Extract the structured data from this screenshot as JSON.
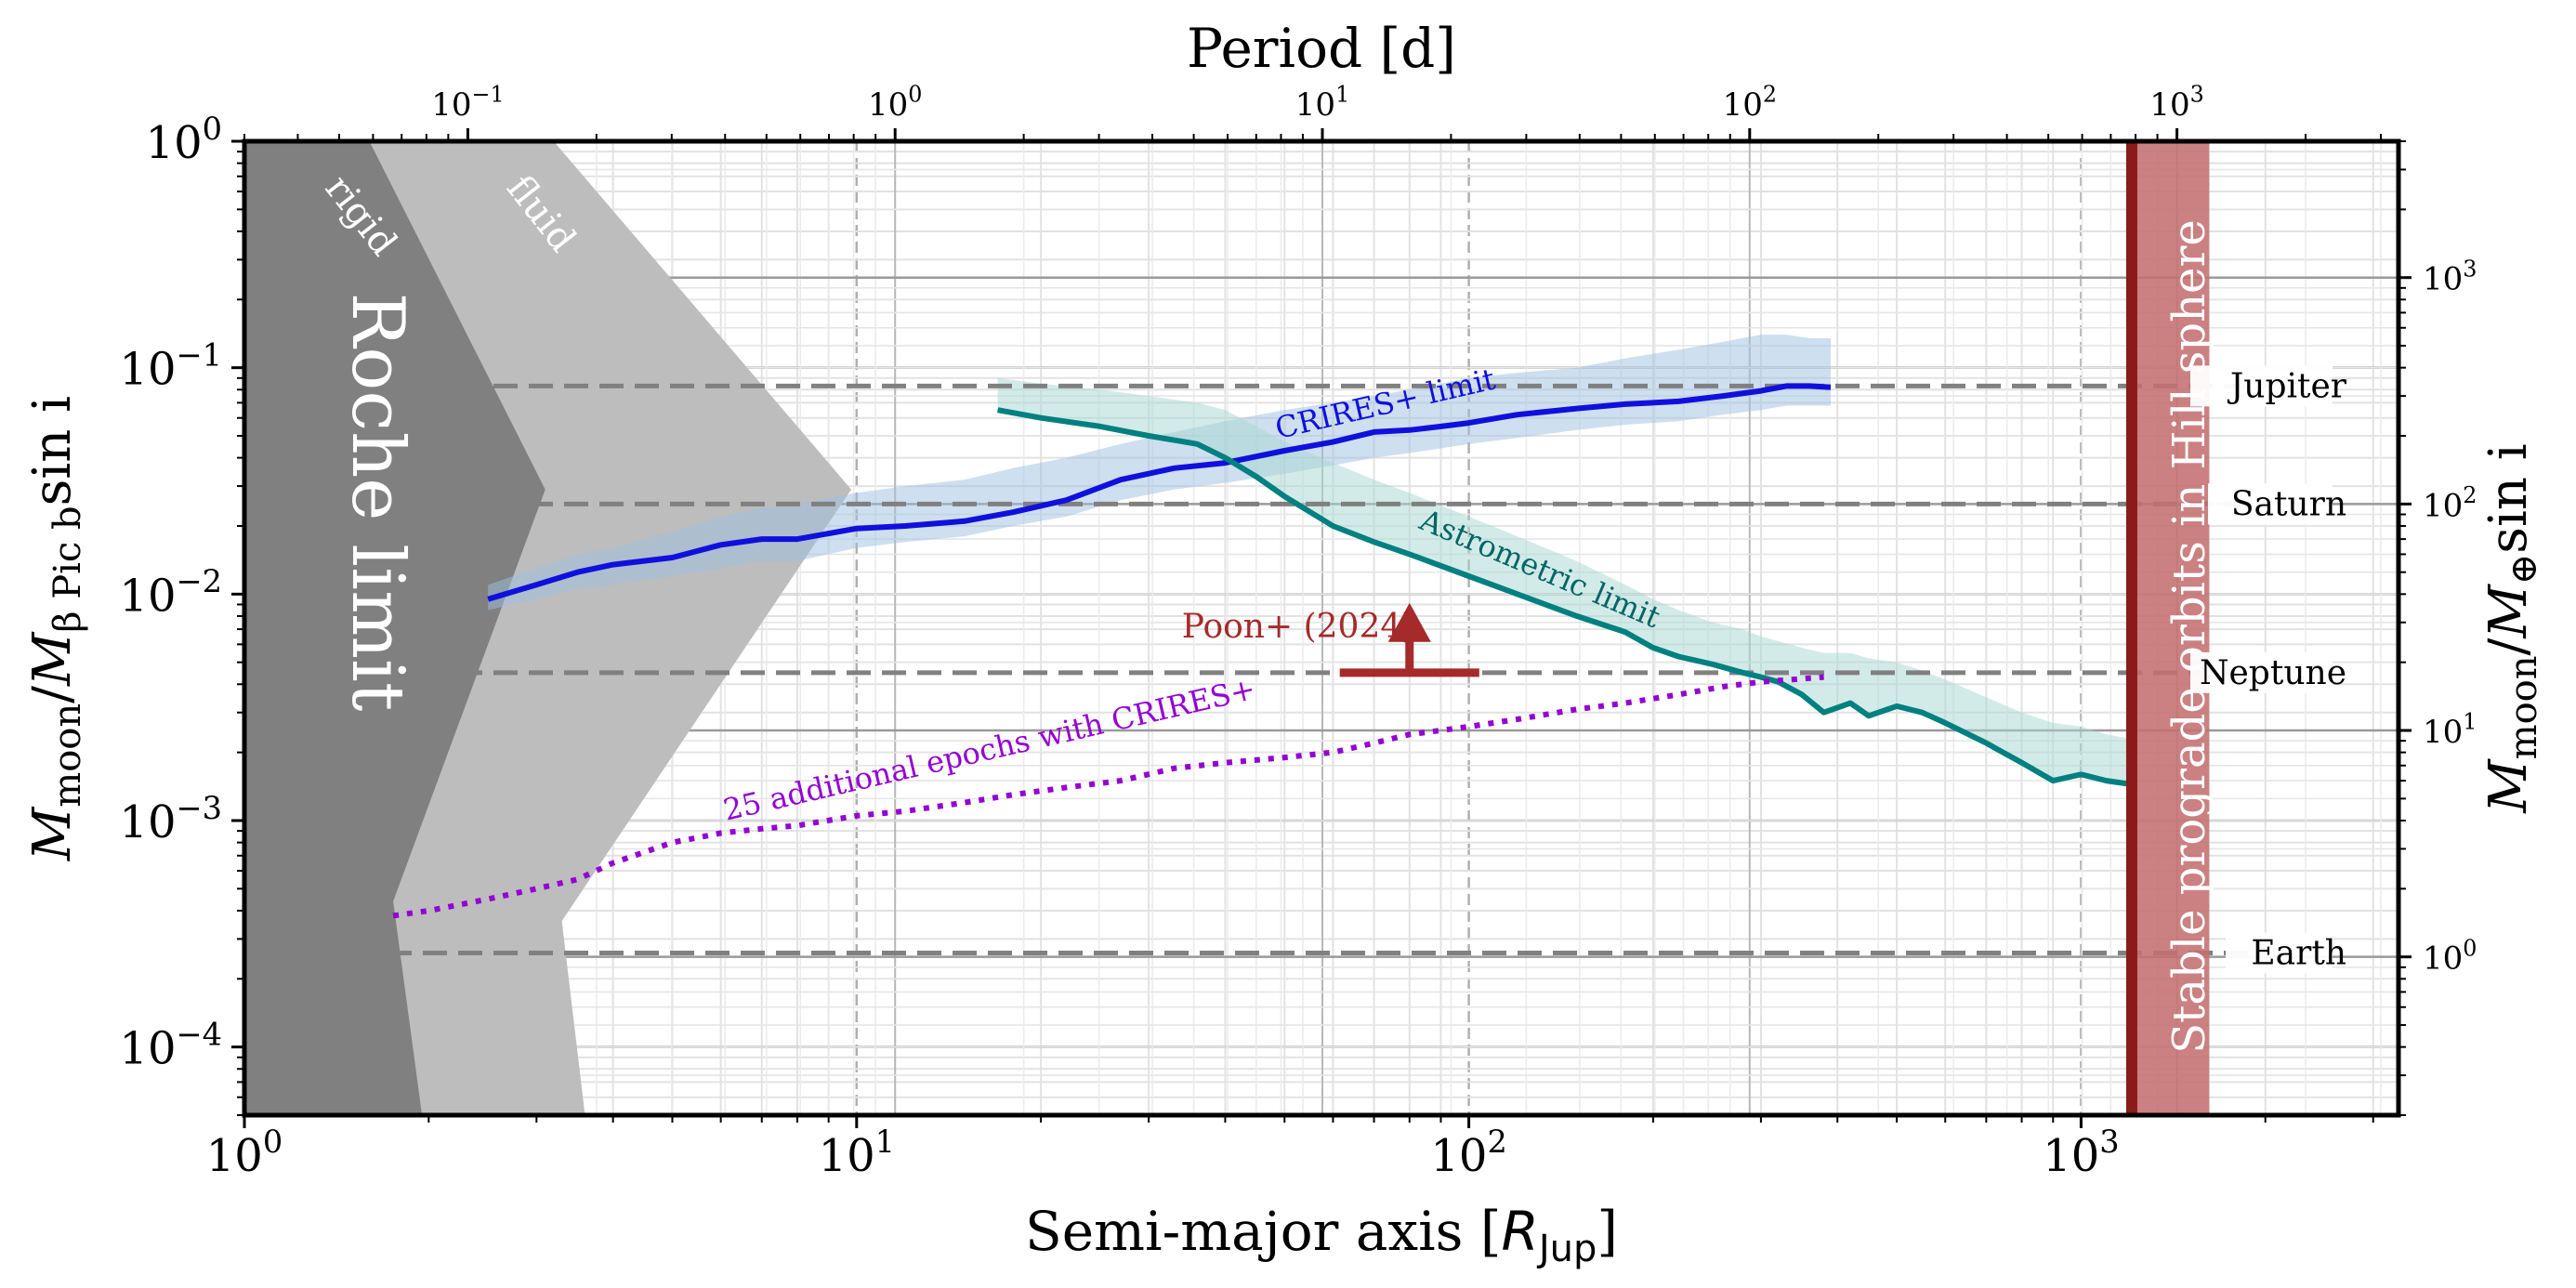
{
  "chart_data": {
    "type": "line",
    "xlabel": "Semi-major axis [$R_\\mathrm{Jup}$]",
    "xlabel_main": "Semi-major axis [",
    "xlabel_sym": "R",
    "xlabel_sub": "Jup",
    "xlabel_close": "]",
    "top_xlabel": "Period [d]",
    "ylabel_left_parts": {
      "m1": "M",
      "s1": "moon",
      "slash": "/",
      "m2": "M",
      "s2": "β Pic b",
      "tail": "sin i"
    },
    "ylabel_right_parts": {
      "m1": "M",
      "s1": "moon",
      "slash": "/",
      "m2": "M",
      "s2": "⊕",
      "tail": "sin i"
    },
    "x_scale": "log",
    "y_scale": "log",
    "xlim": [
      1,
      3300
    ],
    "ylim": [
      5e-05,
      1
    ],
    "top_xlim_days": [
      0.03,
      3300
    ],
    "right_ylim_earth": [
      0.2,
      4000
    ],
    "grid": "on",
    "x_ticks": [
      {
        "value": 1,
        "base": "10",
        "exp": "0"
      },
      {
        "value": 10,
        "base": "10",
        "exp": "1"
      },
      {
        "value": 100,
        "base": "10",
        "exp": "2"
      },
      {
        "value": 1000,
        "base": "10",
        "exp": "3"
      }
    ],
    "y_ticks": [
      {
        "value": 1,
        "base": "10",
        "exp": "0"
      },
      {
        "value": 0.1,
        "base": "10",
        "exp": "−1"
      },
      {
        "value": 0.01,
        "base": "10",
        "exp": "−2"
      },
      {
        "value": 0.001,
        "base": "10",
        "exp": "−3"
      },
      {
        "value": 0.0001,
        "base": "10",
        "exp": "−4"
      }
    ],
    "top_ticks": [
      {
        "value": 0.1,
        "base": "10",
        "exp": "−1"
      },
      {
        "value": 1,
        "base": "10",
        "exp": "0"
      },
      {
        "value": 10,
        "base": "10",
        "exp": "1"
      },
      {
        "value": 100,
        "base": "10",
        "exp": "2"
      },
      {
        "value": 1000,
        "base": "10",
        "exp": "3"
      }
    ],
    "right_ticks": [
      {
        "value": 1,
        "base": "10",
        "exp": "0"
      },
      {
        "value": 10,
        "base": "10",
        "exp": "1"
      },
      {
        "value": 100,
        "base": "10",
        "exp": "2"
      },
      {
        "value": 1000,
        "base": "10",
        "exp": "3"
      }
    ],
    "regions": {
      "roche_rigid": {
        "label": "rigid",
        "color": "#808080"
      },
      "roche_fluid": {
        "label": "fluid",
        "color": "#bdbdbd"
      },
      "roche_limit": {
        "label": "Roche limit"
      },
      "hill_sphere": {
        "label": "Stable prograde orbits in Hill sphere",
        "line_x": 1210,
        "band_x": [
          1210,
          1620
        ],
        "line_color": "#8b1a1a",
        "band_color": "#c47070"
      }
    },
    "reference_masses": [
      {
        "name": "Jupiter",
        "y": 0.083
      },
      {
        "name": "Saturn",
        "y": 0.025
      },
      {
        "name": "Neptune",
        "y": 0.0045
      },
      {
        "name": "Earth",
        "y": 0.00026
      }
    ],
    "series": [
      {
        "name": "CRIRES+ limit",
        "color": "#1010dd",
        "band_color": "#9dbfe0",
        "x": [
          2.5,
          3.0,
          3.5,
          4.0,
          5.0,
          6.0,
          7.0,
          8.0,
          10.0,
          12.0,
          15.0,
          18.0,
          22.0,
          27.0,
          33.0,
          40.0,
          50.0,
          60.0,
          70.0,
          80.0,
          90.0,
          100.0,
          120.0,
          150.0,
          180.0,
          220.0,
          260.0,
          300.0,
          330.0,
          360.0,
          390.0
        ],
        "y": [
          0.0095,
          0.011,
          0.0125,
          0.0135,
          0.0145,
          0.0165,
          0.0175,
          0.0175,
          0.0195,
          0.02,
          0.021,
          0.023,
          0.026,
          0.032,
          0.036,
          0.038,
          0.043,
          0.047,
          0.052,
          0.053,
          0.055,
          0.057,
          0.062,
          0.066,
          0.069,
          0.071,
          0.075,
          0.079,
          0.083,
          0.083,
          0.082
        ],
        "upper": [
          0.011,
          0.013,
          0.015,
          0.016,
          0.019,
          0.022,
          0.024,
          0.025,
          0.028,
          0.03,
          0.032,
          0.036,
          0.04,
          0.046,
          0.052,
          0.058,
          0.065,
          0.07,
          0.075,
          0.08,
          0.085,
          0.09,
          0.095,
          0.1,
          0.11,
          0.12,
          0.13,
          0.14,
          0.14,
          0.135,
          0.135
        ],
        "lower": [
          0.0085,
          0.0095,
          0.0105,
          0.011,
          0.012,
          0.013,
          0.014,
          0.014,
          0.016,
          0.017,
          0.018,
          0.02,
          0.022,
          0.026,
          0.029,
          0.031,
          0.034,
          0.037,
          0.04,
          0.042,
          0.044,
          0.046,
          0.049,
          0.053,
          0.056,
          0.058,
          0.062,
          0.065,
          0.068,
          0.068,
          0.068
        ]
      },
      {
        "name": "Astrometric limit",
        "color": "#008080",
        "band_color": "#a8d8d2",
        "x": [
          17,
          20,
          25,
          30,
          36,
          40,
          45,
          50,
          60,
          70,
          80,
          100,
          120,
          150,
          180,
          200,
          220,
          250,
          280,
          300,
          320,
          350,
          380,
          420,
          450,
          500,
          550,
          600,
          700,
          800,
          900,
          1000,
          1100,
          1200
        ],
        "y": [
          0.065,
          0.06,
          0.055,
          0.05,
          0.046,
          0.04,
          0.033,
          0.027,
          0.02,
          0.017,
          0.015,
          0.012,
          0.01,
          0.008,
          0.0068,
          0.0058,
          0.0053,
          0.0049,
          0.0045,
          0.0043,
          0.0041,
          0.0036,
          0.003,
          0.0033,
          0.0029,
          0.0032,
          0.003,
          0.0027,
          0.0022,
          0.0018,
          0.0015,
          0.0016,
          0.0015,
          0.00145
        ],
        "upper": [
          0.09,
          0.085,
          0.08,
          0.075,
          0.07,
          0.065,
          0.055,
          0.047,
          0.038,
          0.032,
          0.028,
          0.022,
          0.018,
          0.014,
          0.011,
          0.0095,
          0.0085,
          0.0075,
          0.007,
          0.0065,
          0.0062,
          0.0058,
          0.0055,
          0.0055,
          0.0052,
          0.005,
          0.0046,
          0.0042,
          0.0035,
          0.003,
          0.0027,
          0.0026,
          0.0024,
          0.0023
        ],
        "lower": [
          0.065,
          0.06,
          0.055,
          0.05,
          0.046,
          0.04,
          0.033,
          0.027,
          0.02,
          0.017,
          0.015,
          0.012,
          0.01,
          0.008,
          0.0068,
          0.0058,
          0.0053,
          0.0049,
          0.0045,
          0.0043,
          0.0041,
          0.0036,
          0.003,
          0.0033,
          0.0029,
          0.0032,
          0.003,
          0.0027,
          0.0022,
          0.0018,
          0.0015,
          0.0016,
          0.0015,
          0.00145
        ]
      },
      {
        "name": "25 additional epochs with CRIRES+",
        "color": "#9400d3",
        "style": "dotted",
        "x": [
          1.75,
          2.0,
          2.5,
          3.0,
          3.5,
          4.0,
          5.0,
          6.0,
          7.0,
          8.0,
          10.0,
          12.0,
          15.0,
          18.0,
          22.0,
          27.0,
          33.0,
          40.0,
          50.0,
          60.0,
          70.0,
          80.0,
          90.0,
          100.0,
          120.0,
          150.0,
          180.0,
          220.0,
          260.0,
          300.0,
          340.0,
          380.0
        ],
        "y": [
          0.00038,
          0.0004,
          0.00045,
          0.0005,
          0.00055,
          0.00065,
          0.0008,
          0.00088,
          0.00092,
          0.00095,
          0.00105,
          0.0011,
          0.0012,
          0.0013,
          0.0014,
          0.0015,
          0.0017,
          0.0018,
          0.0019,
          0.002,
          0.0022,
          0.0024,
          0.0025,
          0.0026,
          0.0028,
          0.0031,
          0.0033,
          0.0036,
          0.0039,
          0.0041,
          0.0042,
          0.0043
        ]
      }
    ],
    "annotations": [
      {
        "text": "Poon+ (2024)",
        "color": "#a52a2a",
        "x": 80,
        "y": 0.0045,
        "kind": "lower-limit-arrow"
      },
      {
        "text": "CRIRES+ limit"
      },
      {
        "text": "Astrometric limit"
      },
      {
        "text": "25 additional epochs with CRIRES+"
      }
    ]
  }
}
